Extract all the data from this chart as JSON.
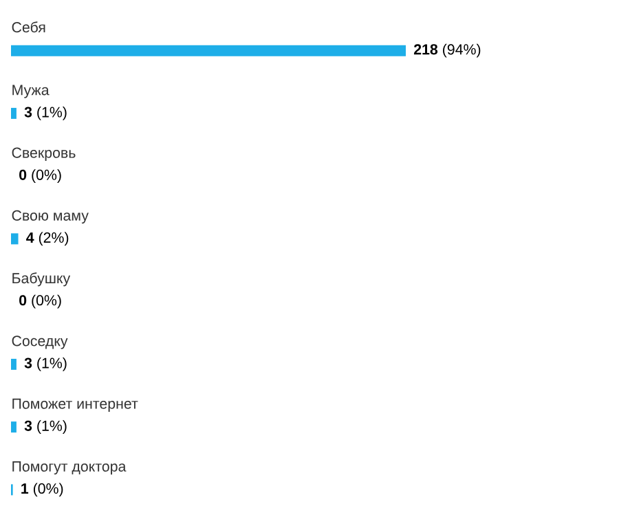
{
  "chart_data": {
    "type": "bar",
    "orientation": "horizontal",
    "categories": [
      "Себя",
      "Мужа",
      "Свекровь",
      "Свою маму",
      "Бабушку",
      "Соседку",
      "Поможет интернет",
      "Помогут доктора"
    ],
    "values": [
      218,
      3,
      0,
      4,
      0,
      3,
      3,
      1
    ],
    "value_labels": [
      "**218** (94%)",
      "**3** (1%)",
      "**0** (0%)",
      "**4** (2%)",
      "**0** (0%)",
      "**3** (1%)",
      "**3** (1%)",
      "**1** (0%)"
    ],
    "color": "#1eaee8"
  }
}
